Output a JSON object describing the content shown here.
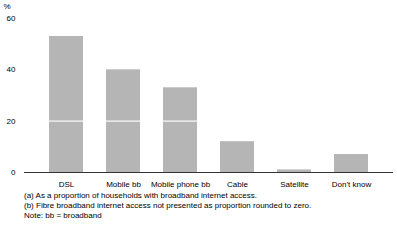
{
  "chart_data": {
    "type": "bar",
    "stacked": true,
    "categories": [
      "DSL",
      "Mobile bb",
      "Mobile phone bb",
      "Cable",
      "Satellite",
      "Don't know"
    ],
    "series": [
      {
        "color": "#b5b5b5",
        "values": [
          20,
          20,
          20,
          0,
          0,
          0
        ]
      },
      {
        "color": "#b5b5b5",
        "values": [
          33,
          20,
          13,
          12,
          1,
          7
        ]
      }
    ],
    "ylabel": "%",
    "ylim": [
      0,
      60
    ],
    "yticks": [
      0,
      20,
      40,
      60
    ],
    "grid": false,
    "background_color": "#ffffff",
    "annotations": [
      "(a) As a proportion of households with broadband internet access.",
      "(b) Fibre broadband internet access not presented as proportion rounded to zero.",
      "Note:  bb = broadband"
    ]
  }
}
